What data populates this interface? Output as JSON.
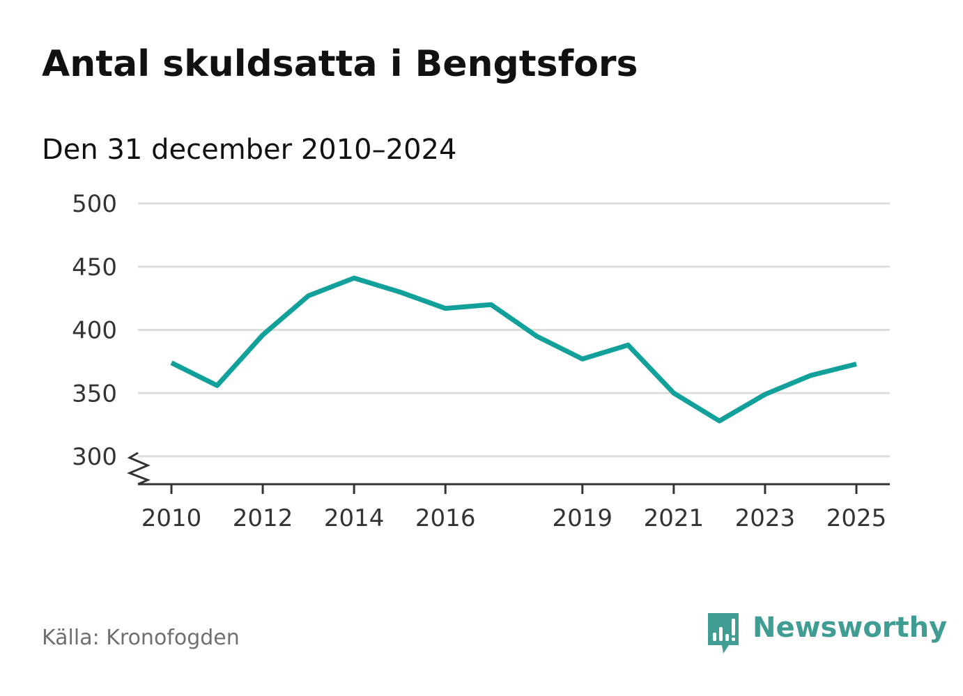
{
  "title": "Antal skuldsatta i Bengtsfors",
  "subtitle": "Den 31 december 2010–2024",
  "source": "Källa: Kronofogden",
  "brand": "Newsworthy",
  "colors": {
    "line": "#12a09a",
    "grid": "#dddddd",
    "axis": "#333333",
    "brand": "#3f9d93"
  },
  "chart_data": {
    "type": "line",
    "title": "Antal skuldsatta i Bengtsfors",
    "subtitle": "Den 31 december 2010–2024",
    "xlabel": "",
    "ylabel": "",
    "ylim": [
      300,
      500
    ],
    "xlim": [
      2010,
      2025
    ],
    "yticks": [
      300,
      350,
      400,
      450,
      500
    ],
    "xticks": [
      2010,
      2012,
      2014,
      2016,
      2019,
      2021,
      2023,
      2025
    ],
    "grid": true,
    "y_axis_break": true,
    "series": [
      {
        "name": "Antal skuldsatta",
        "x": [
          2010,
          2011,
          2012,
          2013,
          2014,
          2015,
          2016,
          2017,
          2018,
          2019,
          2020,
          2021,
          2022,
          2023,
          2024,
          2025
        ],
        "values": [
          374,
          356,
          396,
          427,
          441,
          430,
          417,
          420,
          395,
          377,
          388,
          350,
          328,
          349,
          364,
          373
        ]
      }
    ]
  }
}
